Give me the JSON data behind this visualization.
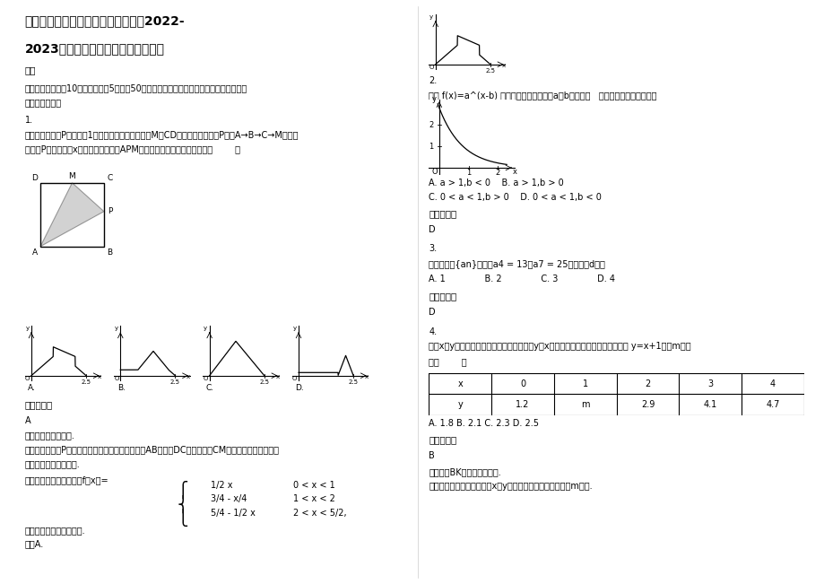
{
  "bg_color": "#ffffff",
  "title_line1": "贵州省遵义市绥阳县蒲场镇蒲场中学2022-",
  "title_line2": "2023学年高二数学理月考试卷含解析",
  "section1_header": "一、",
  "section1_text1": "选择题：本大题共10小题，每小题5分，共50分。在每小题给出的四个选项中，只有是一个",
  "section1_text2": "符合题目要求的",
  "q1_num": "1.",
  "q1_text1": "如右图所示，点P在边长为1的正方形的边上运动，设M是CD边的中点，则当点P沿着A→B→C→M运动时",
  "q1_text2": "，以点P经过的路程x为自变量，三角形APM的面积函数的图象形状大致是（        ）",
  "answer_label": "参考答案：",
  "ans1": "A",
  "analysis1_kaodian": "【考点】函数的图象.",
  "analysis1_fenxi1": "【分析】随着点P的位置的不同，讨论三种情形即在AB上，在DC上，以及在CM上分别建立面积的函数",
  "analysis1_fenxi2": "。分段函数出图象即可.",
  "answer_text1": "【解答】解：根据题意得f（x）=",
  "answer_text2": "分段函数图象分段画即可.",
  "answer_text3": "故选A.",
  "q2_num": "2.",
  "q2_text": "函数 f(x)=a^(x-b) 的图象如图所示，其中a、b为常数，   则下列结论正确的是（）",
  "q2_opt1": "A. a > 1,b < 0    B. a > 1,b > 0",
  "q2_opt2": "C. 0 < a < 1,b > 0    D. 0 < a < 1,b < 0",
  "ans2_label": "参考答案：",
  "ans2": "D",
  "q3_num": "3.",
  "q3_text": "在等差数列{an}中，若a4 = 13，a7 = 25，则公差d等于",
  "q3_options": "A. 1              B. 2              C. 3              D. 4",
  "ans3_label": "参考答案：",
  "ans3": "D",
  "q4_num": "4.",
  "q4_text1": "已知x，y的取值如表，画散点图分析可知，y与x线性相关，且求得回归直线方程为 y=x+1，则m的值",
  "q4_text2": "为（        ）",
  "table_x": [
    "x",
    "0",
    "1",
    "2",
    "3",
    "4"
  ],
  "table_y": [
    "y",
    "1.2",
    "m",
    "2.9",
    "4.1",
    "4.7"
  ],
  "q4_options": "A. 1.8 B. 2.1 C. 2.3 D. 2.5",
  "ans4_label": "参考答案：",
  "ans4": "B",
  "analysis4_kaodian": "【考点】BK：线性回归方程.",
  "analysis4_fenxi": "【分析】根据表中数据计算x，y，代入回归直线方程中求出m的值."
}
